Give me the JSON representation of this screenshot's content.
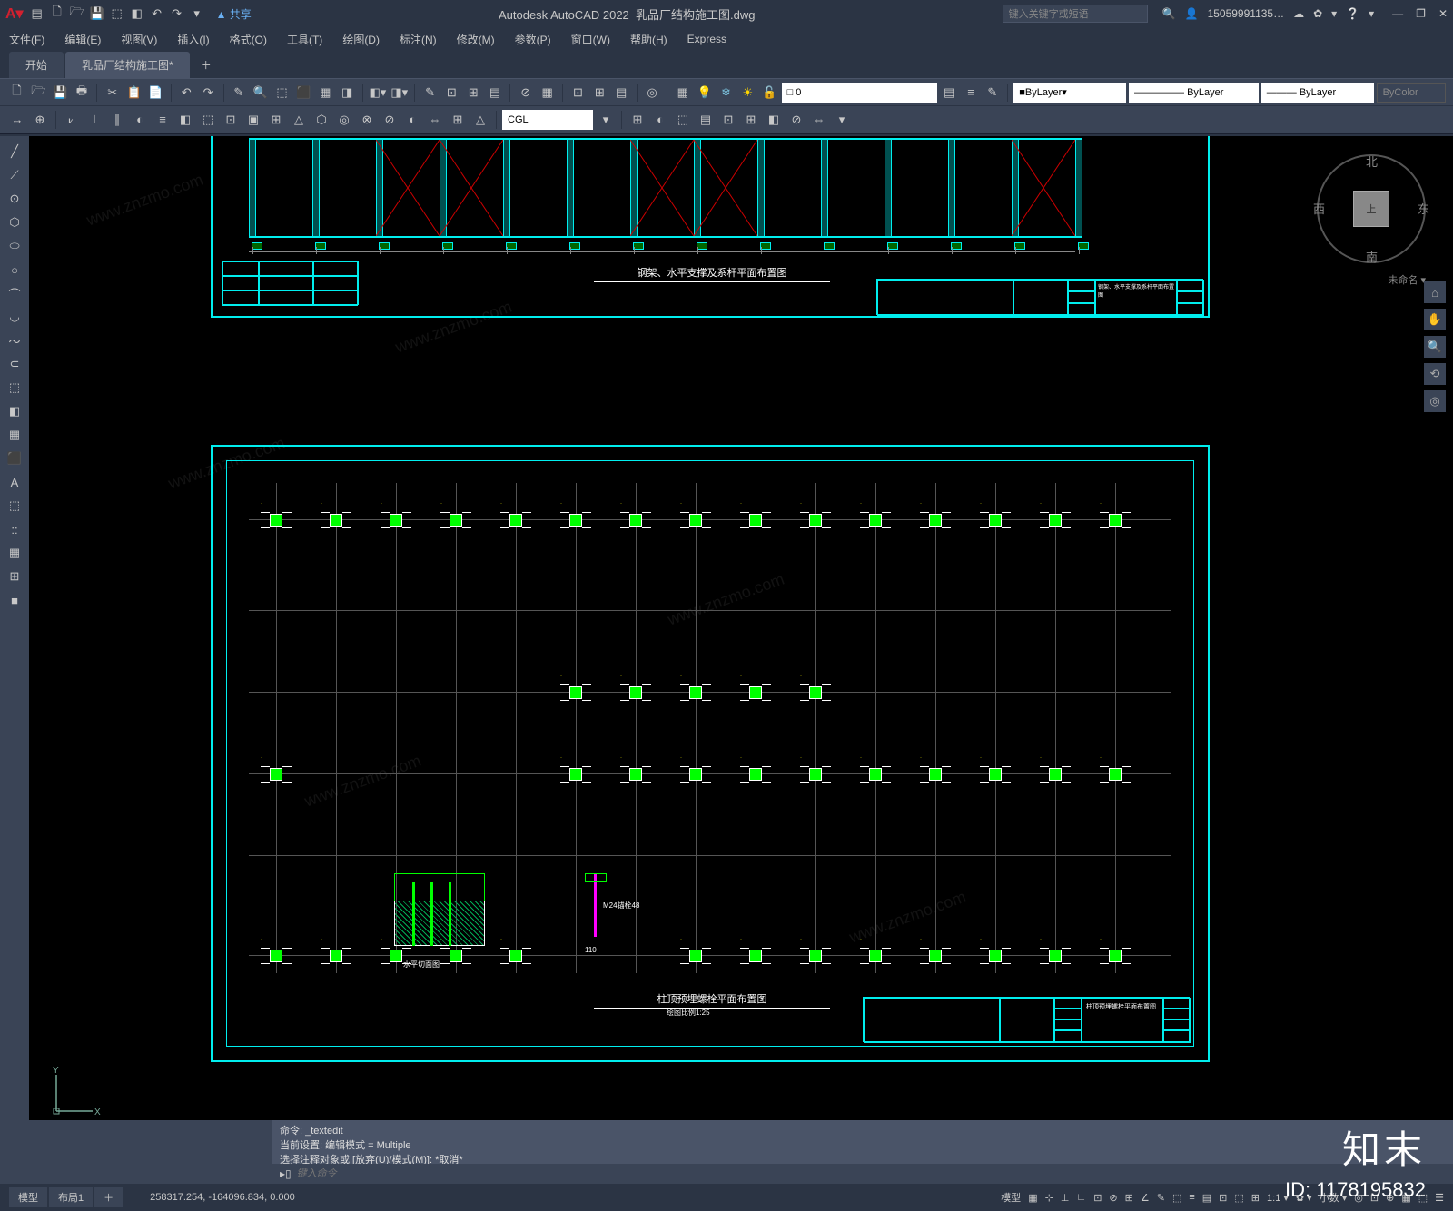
{
  "titlebar": {
    "app": "Autodesk AutoCAD 2022",
    "file": "乳品厂结构施工图.dwg",
    "share": "▲ 共享",
    "search_placeholder": "键入关键字或短语",
    "user": "15059991135…",
    "qat": [
      "▤",
      "🗋",
      "🗁",
      "💾",
      "⬚",
      "◧",
      "↶",
      "↷",
      "▾"
    ],
    "rightIcons": [
      "☁",
      "✿",
      "❔"
    ],
    "winbtns": [
      "—",
      "❐",
      "✕"
    ]
  },
  "menubar": [
    "文件(F)",
    "编辑(E)",
    "视图(V)",
    "插入(I)",
    "格式(O)",
    "工具(T)",
    "绘图(D)",
    "标注(N)",
    "修改(M)",
    "参数(P)",
    "窗口(W)",
    "帮助(H)",
    "Express"
  ],
  "filetabs": {
    "start": "开始",
    "active": "乳品厂结构施工图*",
    "plus": "＋"
  },
  "ribbon": {
    "row1_icons": [
      "🗋",
      "🗁",
      "💾",
      "🖶",
      "✂",
      "📋",
      "📄",
      "↶",
      "↷",
      "✎",
      "🔍",
      "⬚",
      "⬛",
      "▦",
      "◨",
      "⊞",
      "⊟",
      "◧",
      "◨",
      "⬚",
      "⬚",
      "🔒",
      "💡",
      "❄",
      "🟡",
      "◐",
      "🔓"
    ],
    "layer0": "□ 0",
    "layerTools": [
      "▤",
      "≡",
      "✎"
    ],
    "bylayer1": "ByLayer",
    "bylayer2": "――――― ByLayer",
    "bylayer3": "――― ByLayer",
    "bycolor": "ByColor",
    "row2_icons": [
      "↔",
      "⊕",
      "⟀",
      "⊥",
      "∥",
      "◐",
      "≡",
      "◧",
      "⬚",
      "⊡",
      "▣",
      "⊞",
      "△",
      "⬡",
      "◎",
      "⊗",
      "⊘",
      "◐",
      "⇔",
      "⊞",
      "△"
    ],
    "cgl": "CGL",
    "row2_right": [
      "▾",
      "⊞",
      "◐",
      "⬚",
      "▤",
      "⊡",
      "⊞",
      "◧",
      "⊘",
      "⇔",
      "▾"
    ]
  },
  "leftTools": [
    "╱",
    "⟋",
    "⊙",
    "⬡",
    "⬭",
    "○",
    "⌒",
    "◡",
    "〜",
    "⊂",
    "⬚",
    "◧",
    "▦",
    "⬛",
    "A",
    "⬚",
    "::",
    "▦",
    "⊞",
    "■"
  ],
  "viewcube": {
    "n": "北",
    "s": "南",
    "e": "东",
    "w": "西",
    "top": "上",
    "label": "未命名 ▾"
  },
  "navright": [
    "⌂",
    "✋",
    "🔍",
    "⟲",
    "◎"
  ],
  "drawing": {
    "upper_title": "钢架、水平支撑及系杆平面布置图",
    "lower_title": "柱顶预埋螺栓平面布置图",
    "lower_scale": "绘图比例1:25",
    "detail_label": "水平切面图",
    "m24": "M24锚栓48",
    "dim110": "110",
    "titleblock_upper": "钢架、水平支撑及系杆平面布置图",
    "titleblock_lower": "柱顶预埋螺栓平面布置图",
    "frame_color": "#00eeee",
    "grid_color": "#008080",
    "node_color": "#00ff00",
    "label_color": "#ffff00",
    "brace_color": "#cc0000"
  },
  "cmd": {
    "hist1": "命令: _textedit",
    "hist2": "当前设置: 编辑模式 = Multiple",
    "hist3": "选择注释对象或 [放弃(U)/模式(M)]: *取消*",
    "prompt": "键入命令",
    "handle": "▸▯"
  },
  "statusbar": {
    "tab1": "模型",
    "tab2": "布局1",
    "plus": "＋",
    "coords": "258317.254, -164096.834, 0.000",
    "model_btn": "模型",
    "icons": [
      "▦",
      "⊹",
      "⊥",
      "∟",
      "⊡",
      "⊘",
      "⊞",
      "∠",
      "✎",
      "⬚",
      "≡",
      "▤",
      "⊡",
      "⬚",
      "⊞"
    ],
    "scale": "1:1 ▾",
    "gear": "✿ ▾",
    "dec": "小数 ▾",
    "more": [
      "◎",
      "⊡",
      "⊕",
      "▦",
      "⬚",
      "☰"
    ]
  },
  "watermark": {
    "logo": "知末",
    "id": "ID: 1178195832",
    "url": "www.znzmo.com"
  }
}
